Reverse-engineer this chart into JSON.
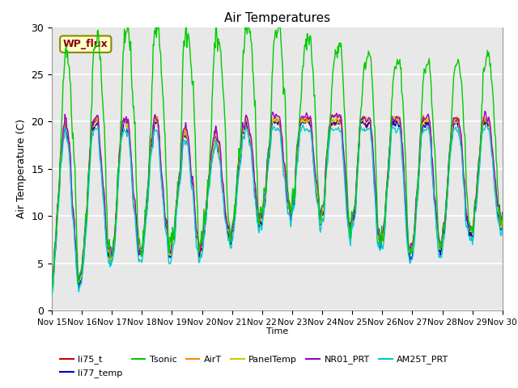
{
  "title": "Air Temperatures",
  "ylabel": "Air Temperature (C)",
  "xlabel": "Time",
  "annotation": "WP_flux",
  "ylim": [
    0,
    30
  ],
  "bg_color": "#e8e8e8",
  "series": {
    "li75_t": {
      "color": "#cc0000",
      "lw": 1.0
    },
    "li77_temp": {
      "color": "#0000cc",
      "lw": 1.0
    },
    "Tsonic": {
      "color": "#00cc00",
      "lw": 1.0
    },
    "AirT": {
      "color": "#ff8800",
      "lw": 1.0
    },
    "PanelTemp": {
      "color": "#cccc00",
      "lw": 1.0
    },
    "NR01_PRT": {
      "color": "#9900cc",
      "lw": 1.0
    },
    "AM25T_PRT": {
      "color": "#00cccc",
      "lw": 1.0
    }
  },
  "xtick_labels": [
    "Nov 15",
    "Nov 16",
    "Nov 17",
    "Nov 18",
    "Nov 19",
    "Nov 20",
    "Nov 21",
    "Nov 22",
    "Nov 23",
    "Nov 24",
    "Nov 25",
    "Nov 26",
    "Nov 27",
    "Nov 28",
    "Nov 29",
    "Nov 30"
  ],
  "n_points": 721,
  "seed": 12345
}
